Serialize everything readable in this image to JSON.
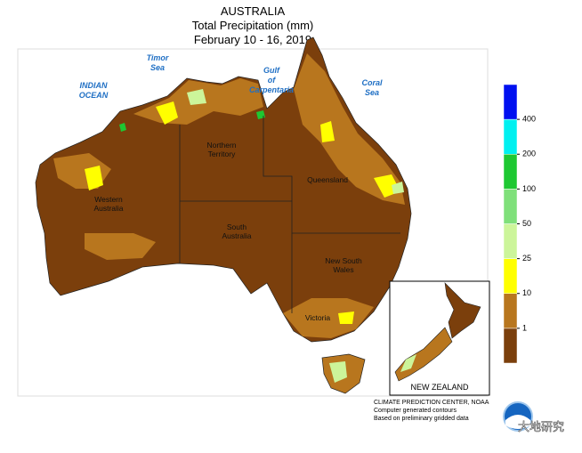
{
  "header": {
    "title": [
      "AUSTRALIA",
      "Total Precipitation (mm)",
      "February 10 - 16, 2019"
    ]
  },
  "map": {
    "water_labels": [
      [
        "Timor",
        "Sea"
      ],
      [
        "INDIAN",
        "OCEAN"
      ],
      [
        "Gulf",
        "of",
        "Carpentaria"
      ],
      [
        "Coral",
        "Sea"
      ]
    ],
    "region_labels": [
      [
        "Northern",
        "Territory"
      ],
      [
        "Western",
        "Australia"
      ],
      [
        "South",
        "Australia"
      ],
      [
        "Queensland"
      ],
      [
        "New South",
        "Wales"
      ],
      [
        "Victoria"
      ]
    ],
    "inset_label": "NEW ZEALAND"
  },
  "legend": {
    "levels": [
      1,
      10,
      25,
      50,
      100,
      200,
      400
    ],
    "colors": [
      "#7b3f0c",
      "#b8761e",
      "#ffff00",
      "#ccf59a",
      "#7fe07a",
      "#1ec832",
      "#00f0f0",
      "#0010f0"
    ]
  },
  "credits": [
    "CLIMATE PREDICTION CENTER, NOAA",
    "Computer generated contours",
    "Based on preliminary gridded data"
  ],
  "watermark": "大地研究"
}
